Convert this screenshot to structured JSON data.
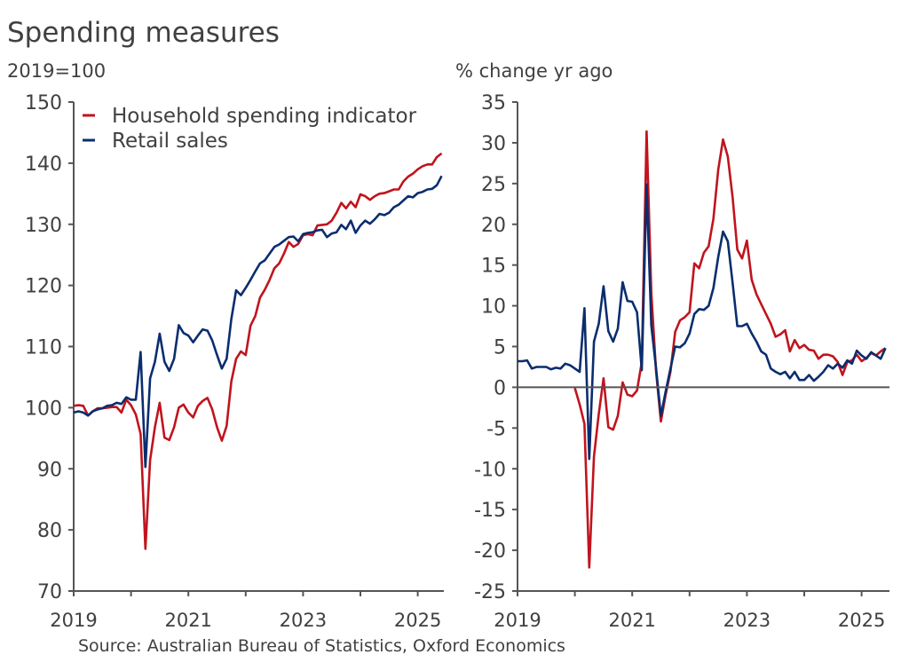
{
  "title": "Spending measures",
  "source": "Source: Australian Bureau of Statistics, Oxford Economics",
  "colors": {
    "household": "#c0141e",
    "retail": "#0a2d6e",
    "axis": "#555555",
    "text": "#404040"
  },
  "legend": [
    "Household spending indicator",
    "Retail sales"
  ],
  "chart_data": [
    {
      "type": "line",
      "ylabel": "2019=100",
      "ylim": [
        70,
        150
      ],
      "yticks": [
        "150",
        "140",
        "130",
        "120",
        "110",
        "100",
        "90",
        "80",
        "70"
      ],
      "xticks": [
        "2019",
        "2021",
        "2023",
        "2025"
      ],
      "x_start": "2019-01",
      "x_end": "2025-06",
      "frequency": "monthly",
      "legend_position": "top-left",
      "series": [
        {
          "name": "Household spending indicator",
          "values": [
            100.3,
            100.4,
            100.3,
            98.7,
            99.4,
            99.9,
            99.9,
            100,
            100.1,
            100.1,
            99.2,
            101.3,
            100.4,
            98.9,
            95.7,
            76.9,
            91.4,
            96.8,
            100.8,
            95.1,
            94.7,
            96.8,
            100,
            100.5,
            99.2,
            98.4,
            100.3,
            101.1,
            101.6,
            99.7,
            96.8,
            94.6,
            97,
            104.3,
            108,
            109.2,
            108.6,
            113.4,
            115,
            118,
            119.3,
            120.9,
            122.8,
            123.6,
            125.2,
            127.1,
            126.3,
            126.8,
            128.2,
            128.4,
            128.2,
            129.8,
            129.9,
            130,
            130.6,
            131.9,
            133.5,
            132.6,
            133.7,
            132.8,
            134.9,
            134.6,
            134,
            134.6,
            135,
            135.1,
            135.4,
            135.7,
            135.7,
            137,
            137.8,
            138.3,
            139,
            139.5,
            139.8,
            139.8,
            141,
            141.6
          ]
        },
        {
          "name": "Retail sales",
          "values": [
            99.2,
            99.4,
            99.2,
            98.7,
            99.4,
            99.7,
            99.9,
            100.3,
            100.4,
            100.8,
            100.6,
            101.7,
            101.3,
            101.3,
            109.1,
            90.3,
            104.8,
            107.5,
            112.1,
            107.5,
            106,
            108,
            113.5,
            112.2,
            111.8,
            110.7,
            111.8,
            112.8,
            112.6,
            111,
            108.6,
            106.4,
            108,
            114.5,
            119.2,
            118.4,
            119.6,
            120.9,
            122.3,
            123.6,
            124.1,
            125.2,
            126.3,
            126.7,
            127.3,
            127.9,
            128,
            127.2,
            128.4,
            128.6,
            128.7,
            129,
            129.1,
            127.9,
            128.5,
            128.7,
            129.9,
            129.2,
            130.6,
            128.6,
            129.8,
            130.6,
            130.1,
            130.8,
            131.7,
            131.5,
            131.9,
            132.8,
            133.2,
            133.9,
            134.6,
            134.4,
            135.1,
            135.3,
            135.7,
            135.8,
            136.4,
            137.9
          ]
        }
      ]
    },
    {
      "type": "line",
      "ylabel": "% change yr ago",
      "ylim": [
        -25,
        35
      ],
      "yticks": [
        "35",
        "30",
        "25",
        "20",
        "15",
        "10",
        "5",
        "0",
        "-5",
        "-10",
        "-15",
        "-20",
        "-25"
      ],
      "xticks": [
        "2019",
        "2021",
        "2023",
        "2025"
      ],
      "x_start": "2019-01",
      "x_end": "2025-06",
      "frequency": "monthly",
      "zero_line": true,
      "series": [
        {
          "name": "Household spending indicator",
          "values": [
            null,
            null,
            null,
            null,
            null,
            null,
            null,
            null,
            null,
            null,
            null,
            null,
            -0.1,
            -2.1,
            -4.5,
            -22.1,
            -8.5,
            -3.3,
            1.1,
            -4.9,
            -5.2,
            -3.5,
            0.6,
            -0.9,
            -1.1,
            -0.4,
            3.1,
            31.4,
            11.6,
            1.9,
            -4.2,
            -0.9,
            1.9,
            6.8,
            8.2,
            8.6,
            9.2,
            15.2,
            14.6,
            16.5,
            17.3,
            20.7,
            26.7,
            30.4,
            28.3,
            23.3,
            16.9,
            15.8,
            18,
            13.2,
            11.4,
            10.2,
            9,
            7.8,
            6.2,
            6.5,
            7,
            4.4,
            5.8,
            4.8,
            5.2,
            4.6,
            4.5,
            3.5,
            4,
            4,
            3.8,
            3.1,
            1.5,
            3.1,
            3.3,
            4,
            3.2,
            3.6,
            4.2,
            3.9,
            4.4,
            4.8
          ]
        },
        {
          "name": "Retail sales",
          "values": [
            3.2,
            3.2,
            3.3,
            2.3,
            2.5,
            2.5,
            2.5,
            2.2,
            2.4,
            2.3,
            2.9,
            2.7,
            2.3,
            1.9,
            9.7,
            -8.8,
            5.6,
            7.8,
            12.4,
            6.9,
            5.6,
            7.2,
            12.9,
            10.6,
            10.5,
            9.2,
            2.1,
            24.9,
            7.6,
            2.3,
            -3.5,
            -0.5,
            2.3,
            5,
            4.9,
            5.4,
            6.6,
            9,
            9.6,
            9.5,
            10,
            12.2,
            16,
            19.1,
            17.9,
            12.8,
            7.5,
            7.5,
            7.8,
            6.6,
            5.6,
            4.4,
            4,
            2.3,
            1.9,
            1.6,
            1.9,
            1.1,
            1.9,
            0.9,
            0.9,
            1.5,
            0.8,
            1.3,
            1.9,
            2.7,
            2.3,
            2.9,
            2.4,
            3.3,
            2.9,
            4.5,
            3.9,
            3.5,
            4.3,
            3.9,
            3.5,
            4.8
          ]
        }
      ]
    }
  ]
}
